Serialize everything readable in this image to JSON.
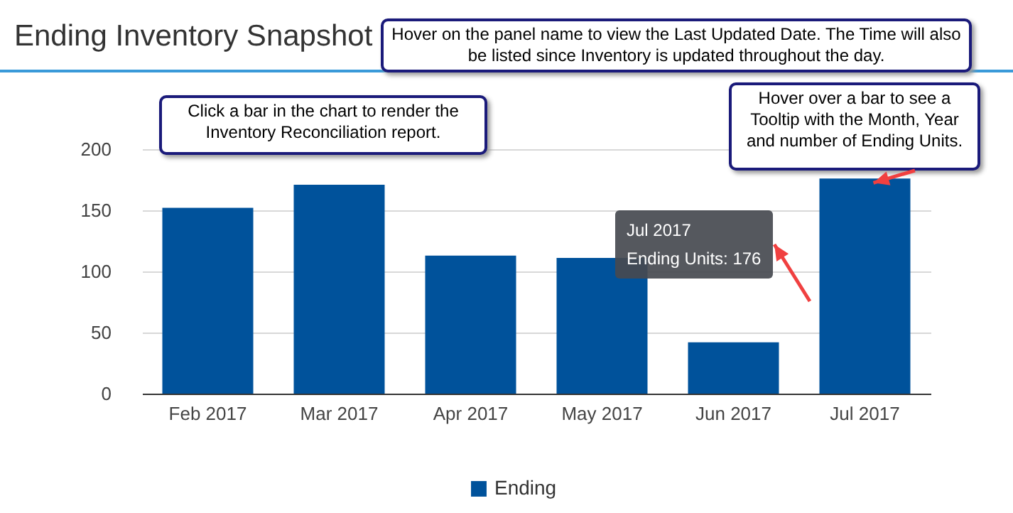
{
  "chart_data": {
    "type": "bar",
    "title": "Ending Inventory Snapshot",
    "categories": [
      "Feb 2017",
      "Mar 2017",
      "Apr 2017",
      "May 2017",
      "Jun 2017",
      "Jul 2017"
    ],
    "series": [
      {
        "name": "Ending",
        "color": "#00529b",
        "values": [
          152,
          171,
          113,
          111,
          42,
          176
        ]
      }
    ],
    "ylim": [
      0,
      200
    ],
    "yticks": [
      0,
      50,
      100,
      150,
      200
    ],
    "grid": "y",
    "legend": "bottom",
    "annotations": [
      "Hover on the panel name to view the Last Updated Date.  The Time will also be listed since Inventory is updated throughout the day.",
      "Click a bar in the chart to render the Inventory Reconciliation report.",
      {
        "text": "Hover over a bar to see a Tooltip with the Month, Year and number of Ending Units.",
        "x": "Jul 2017",
        "y": 176
      },
      "Jul 2017\nEnding Units: 176"
    ]
  }
}
